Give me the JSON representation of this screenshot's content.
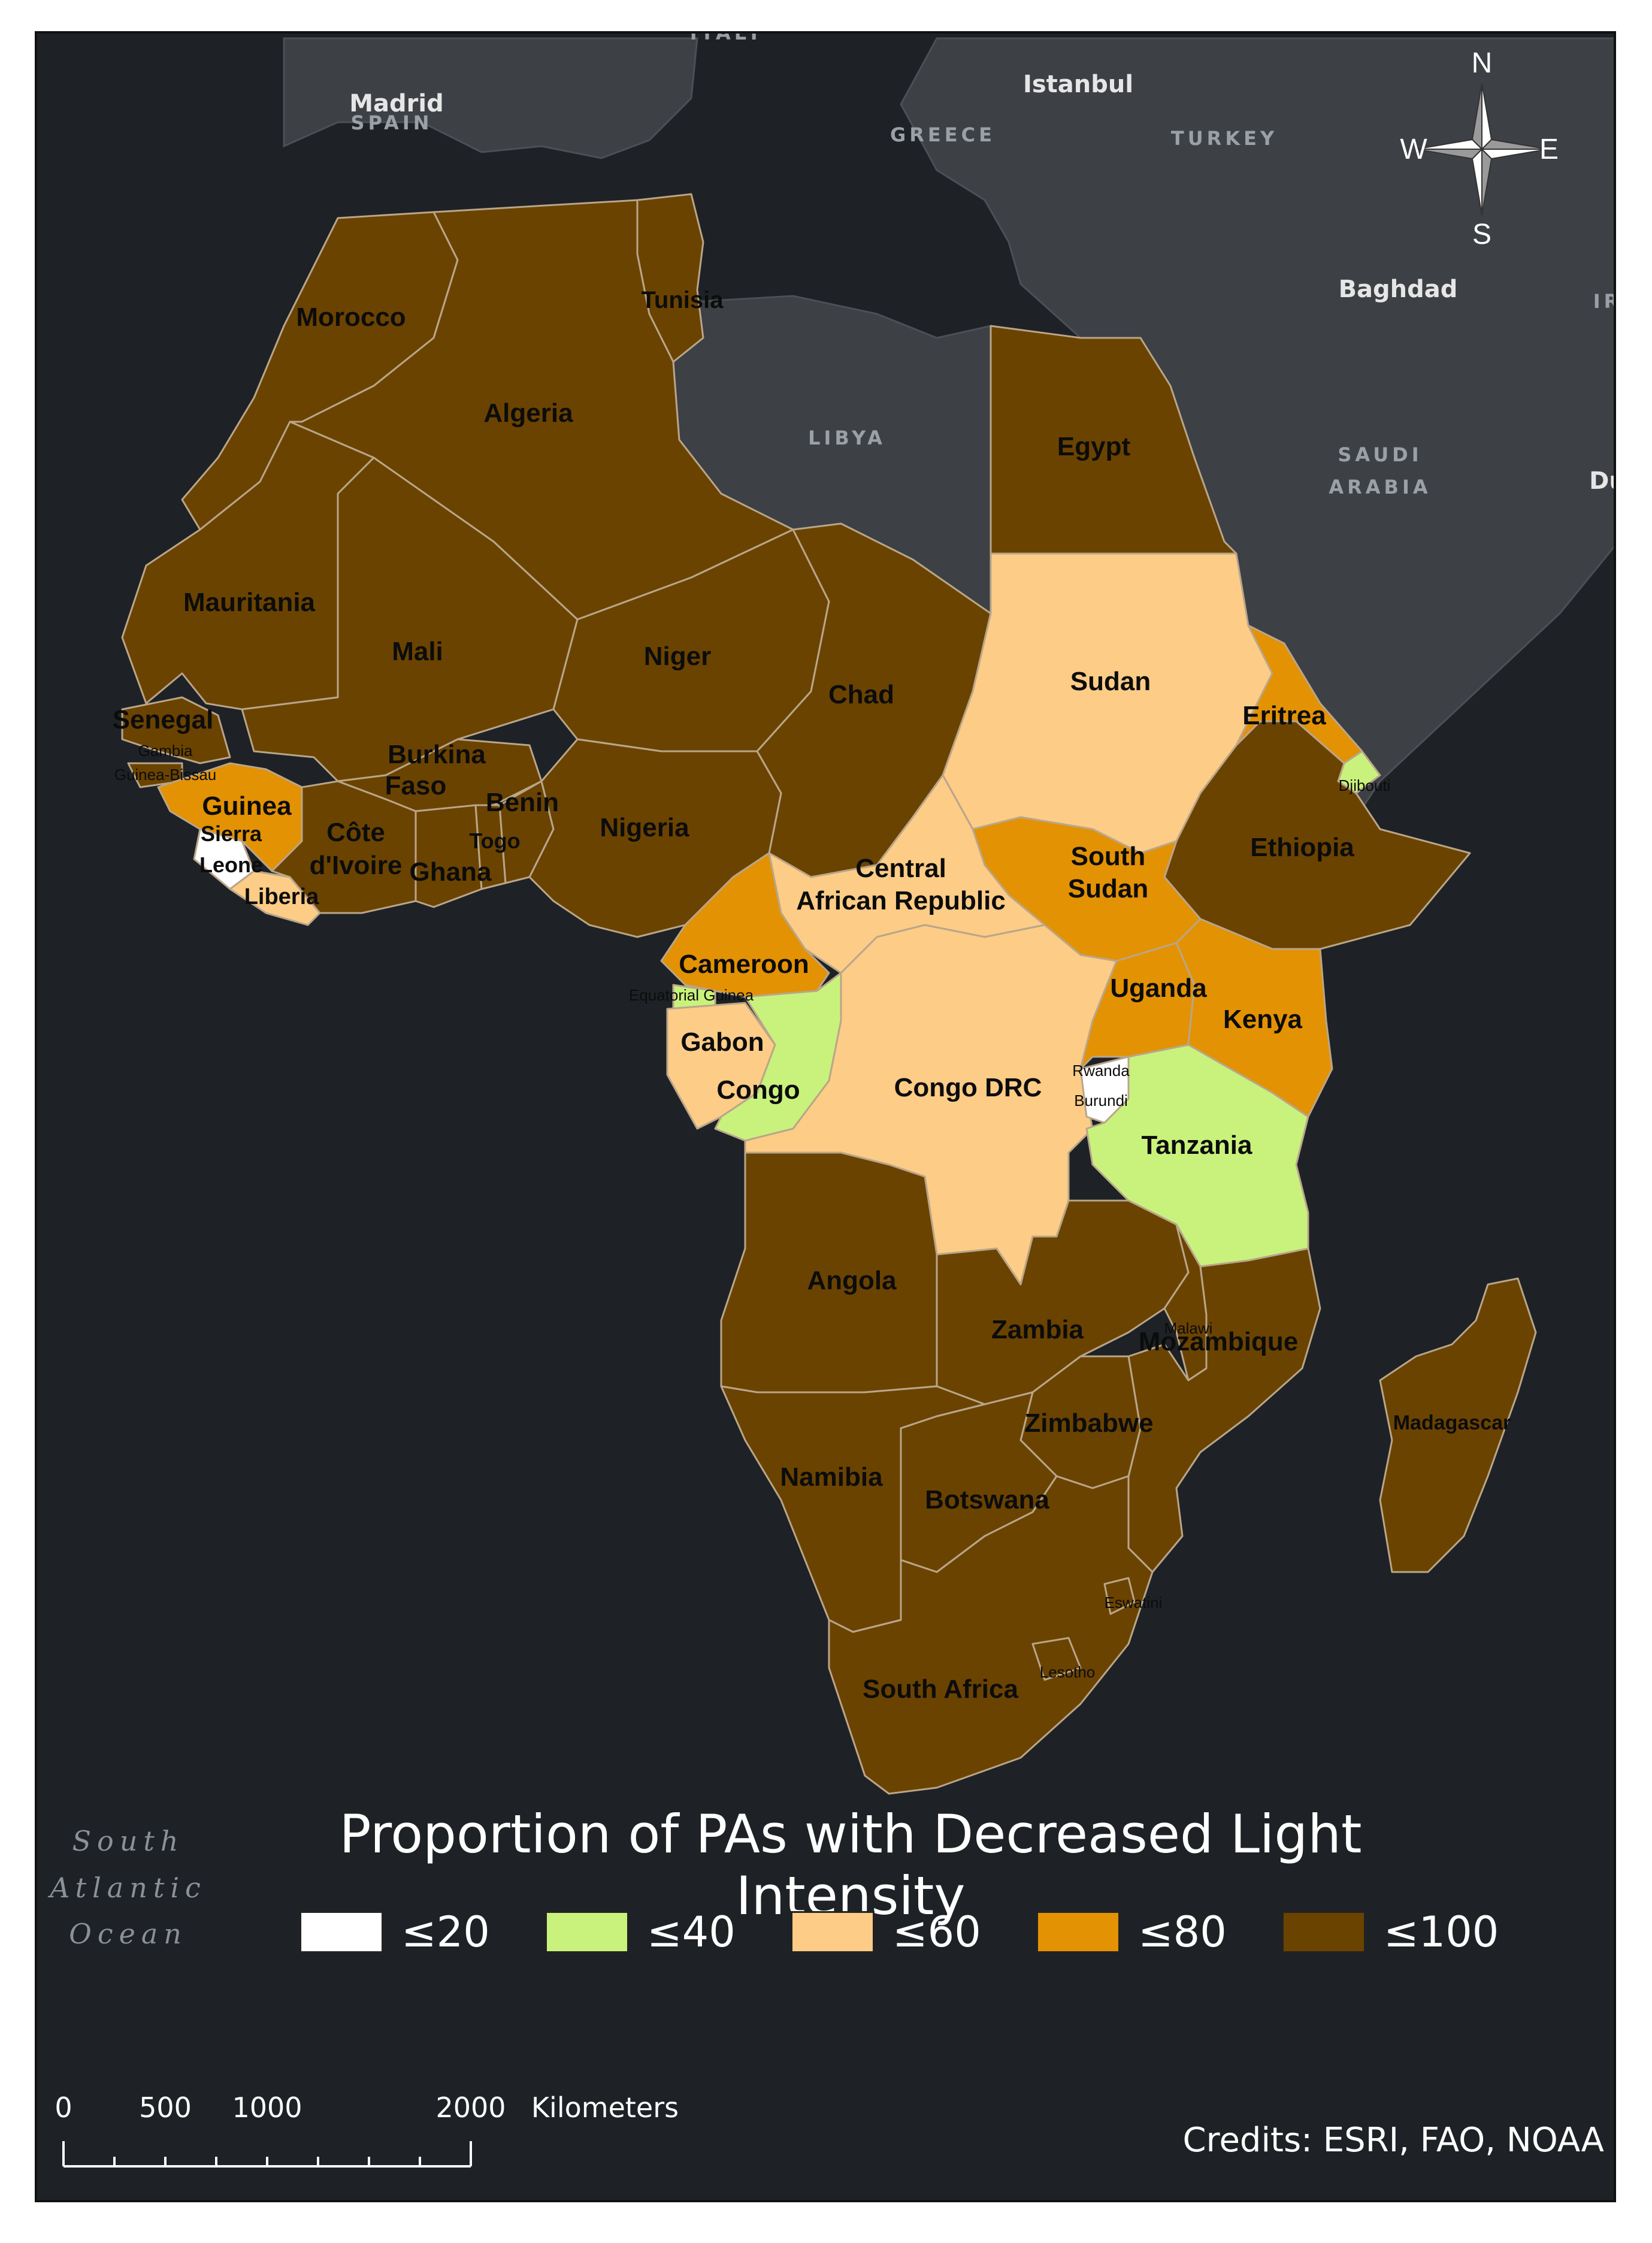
{
  "map": {
    "basemap_labels": {
      "cities": [
        "Madrid",
        "Istanbul",
        "Baghdad"
      ],
      "countries": [
        "SPAIN",
        "GREECE",
        "TURKEY",
        "LIBYA",
        "SAUDI",
        "ARABIA",
        "ITALY",
        "IR",
        "Du"
      ],
      "ocean": [
        "South",
        "Atlantic",
        "Ocean"
      ]
    },
    "countries": [
      {
        "name": "Morocco",
        "class": "≤100"
      },
      {
        "name": "Tunisia",
        "class": "≤100"
      },
      {
        "name": "Algeria",
        "class": "≤100"
      },
      {
        "name": "Egypt",
        "class": "≤100"
      },
      {
        "name": "Mauritania",
        "class": "≤100"
      },
      {
        "name": "Mali",
        "class": "≤100"
      },
      {
        "name": "Niger",
        "class": "≤100"
      },
      {
        "name": "Chad",
        "class": "≤100"
      },
      {
        "name": "Sudan",
        "class": "≤60"
      },
      {
        "name": "Eritrea",
        "class": "≤80"
      },
      {
        "name": "Djibouti",
        "class": "≤40"
      },
      {
        "name": "Senegal",
        "class": "≤100"
      },
      {
        "name": "Gambia",
        "class": "≤100"
      },
      {
        "name": "Guinea-Bissau",
        "class": "≤100"
      },
      {
        "name": "Guinea",
        "class": "≤80"
      },
      {
        "name": "Sierra Leone",
        "class": "≤20"
      },
      {
        "name": "Liberia",
        "class": "≤60"
      },
      {
        "name": "Côte d'Ivoire",
        "class": "≤100"
      },
      {
        "name": "Burkina Faso",
        "class": "≤100"
      },
      {
        "name": "Ghana",
        "class": "≤100"
      },
      {
        "name": "Togo",
        "class": "≤100"
      },
      {
        "name": "Benin",
        "class": "≤100"
      },
      {
        "name": "Nigeria",
        "class": "≤100"
      },
      {
        "name": "Ethiopia",
        "class": "≤100"
      },
      {
        "name": "South Sudan",
        "class": "≤80"
      },
      {
        "name": "Central African Republic",
        "class": "≤60"
      },
      {
        "name": "Cameroon",
        "class": "≤80"
      },
      {
        "name": "Equatorial Guinea",
        "class": "≤40"
      },
      {
        "name": "Gabon",
        "class": "≤60"
      },
      {
        "name": "Congo",
        "class": "≤40"
      },
      {
        "name": "Congo DRC",
        "class": "≤60"
      },
      {
        "name": "Uganda",
        "class": "≤80"
      },
      {
        "name": "Kenya",
        "class": "≤80"
      },
      {
        "name": "Rwanda",
        "class": "≤20"
      },
      {
        "name": "Burundi",
        "class": "≤20"
      },
      {
        "name": "Tanzania",
        "class": "≤40"
      },
      {
        "name": "Angola",
        "class": "≤100"
      },
      {
        "name": "Zambia",
        "class": "≤100"
      },
      {
        "name": "Malawi",
        "class": "≤100"
      },
      {
        "name": "Mozambique",
        "class": "≤100"
      },
      {
        "name": "Zimbabwe",
        "class": "≤100"
      },
      {
        "name": "Namibia",
        "class": "≤100"
      },
      {
        "name": "Botswana",
        "class": "≤100"
      },
      {
        "name": "Madagascar",
        "class": "≤100"
      },
      {
        "name": "Eswatini",
        "class": "≤100"
      },
      {
        "name": "Lesotho",
        "class": "≤100"
      },
      {
        "name": "South Africa",
        "class": "≤100"
      }
    ]
  },
  "legend": {
    "title": "Proportion of PAs with Decreased Light Intensity",
    "items": [
      {
        "label": "≤20",
        "color": "#ffffff"
      },
      {
        "label": "≤40",
        "color": "#c9f27c"
      },
      {
        "label": "≤60",
        "color": "#fdcc86"
      },
      {
        "label": "≤80",
        "color": "#e39204"
      },
      {
        "label": "≤100",
        "color": "#6b4300"
      }
    ]
  },
  "scale_bar": {
    "ticks": [
      "0",
      "500",
      "1000",
      "2000"
    ],
    "unit": "Kilometers"
  },
  "compass": {
    "n": "N",
    "s": "S",
    "e": "E",
    "w": "W"
  },
  "credits": "Credits: ESRI, FAO, NOAA",
  "colors": {
    "ocean": "#1e2226",
    "other_land": "#3d4045",
    "border": "#b9a68a"
  }
}
